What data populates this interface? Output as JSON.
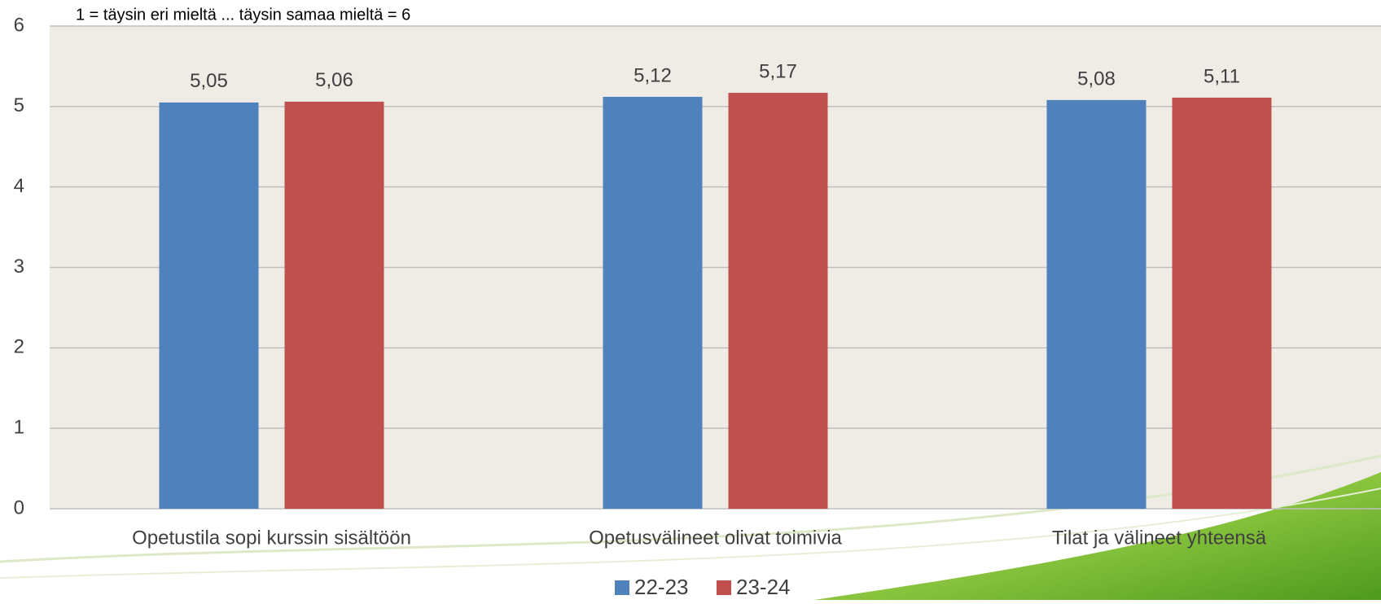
{
  "chart_data": {
    "type": "bar",
    "subtitle": "1 = täysin eri mieltä ... täysin samaa mieltä = 6",
    "categories": [
      "Opetustila sopi kurssin sisältöön",
      "Opetusvälineet olivat toimivia",
      "Tilat ja välineet yhteensä"
    ],
    "series": [
      {
        "name": "22-23",
        "color": "#4f81bd",
        "values": [
          5.05,
          5.12,
          5.08
        ],
        "value_labels": [
          "5,05",
          "5,12",
          "5,08"
        ]
      },
      {
        "name": "23-24",
        "color": "#c0504d",
        "values": [
          5.06,
          5.17,
          5.11
        ],
        "value_labels": [
          "5,06",
          "5,17",
          "5,11"
        ]
      }
    ],
    "ylim": [
      0,
      6
    ],
    "yticks": [
      0,
      1,
      2,
      3,
      4,
      5,
      6
    ],
    "grid": true,
    "legend": "bottom"
  }
}
